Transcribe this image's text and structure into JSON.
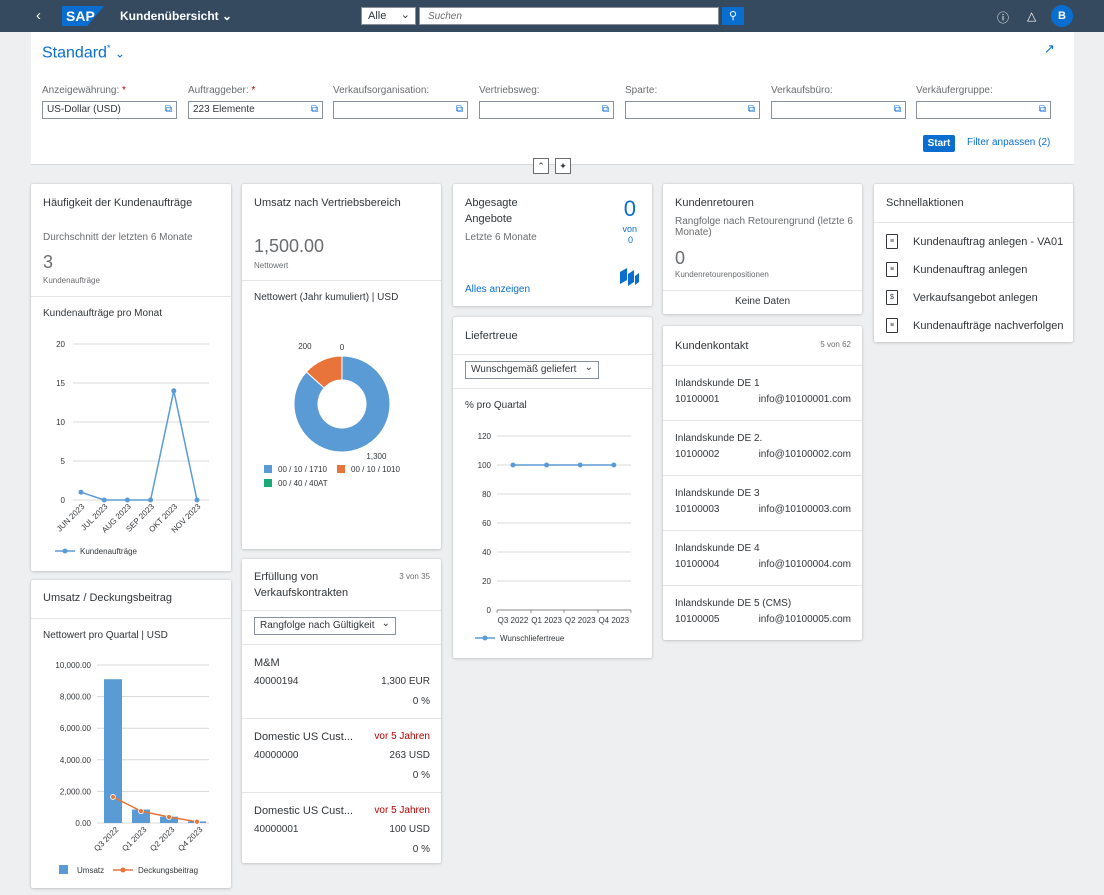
{
  "shell": {
    "app_title": "Kundenübersicht",
    "scope": "Alle",
    "search_placeholder": "Suchen",
    "avatar": "B"
  },
  "filterbar": {
    "variant": "Standard",
    "fields": [
      {
        "label": "Anzeigewährung:",
        "required": true,
        "value": "US-Dollar (USD)"
      },
      {
        "label": "Auftraggeber:",
        "required": true,
        "value": "223 Elemente"
      },
      {
        "label": "Verkaufsorganisation:",
        "required": false,
        "value": ""
      },
      {
        "label": "Vertriebsweg:",
        "required": false,
        "value": ""
      },
      {
        "label": "Sparte:",
        "required": false,
        "value": ""
      },
      {
        "label": "Verkaufsbüro:",
        "required": false,
        "value": ""
      },
      {
        "label": "Verkäufergruppe:",
        "required": false,
        "value": ""
      }
    ],
    "start": "Start",
    "adapt": "Filter anpassen (2)"
  },
  "freq": {
    "title": "Häufigkeit der Kundenaufträge",
    "subtitle": "Durchschnitt der letzten 6 Monate",
    "kpi": "3",
    "kpi_unit": "Kundenaufträge",
    "chart_title": "Kundenaufträge pro Monat"
  },
  "sales_area": {
    "title": "Umsatz nach Vertriebsbereich",
    "kpi": "1,500.00",
    "kpi_unit": "Nettowert",
    "chart_title": "Nettowert (Jahr kumuliert) | USD"
  },
  "quotes": {
    "title": "Abgesagte Angebote",
    "subtitle": "Letzte 6 Monate",
    "count": "0",
    "von": "von",
    "total": "0",
    "link": "Alles anzeigen"
  },
  "returns": {
    "title": "Kundenretouren",
    "subtitle": "Rangfolge nach Retourengrund (letzte 6 Monate)",
    "kpi": "0",
    "kpi_unit": "Kundenretourenpositionen",
    "empty": "Keine Daten"
  },
  "quick": {
    "title": "Schnellaktionen",
    "items": [
      "Kundenauftrag anlegen - VA01",
      "Kundenauftrag anlegen",
      "Verkaufsangebot anlegen",
      "Kundenaufträge nachverfolgen"
    ]
  },
  "delivery": {
    "title": "Liefertreue",
    "select": "Wunschgemäß geliefert",
    "chart_title": "% pro Quartal"
  },
  "contacts": {
    "title": "Kundenkontakt",
    "count": "5 von 62",
    "items": [
      {
        "name": "Inlandskunde DE 1",
        "id": "10100001",
        "email": "info@10100001.com"
      },
      {
        "name": "Inlandskunde DE 2.",
        "id": "10100002",
        "email": "info@10100002.com"
      },
      {
        "name": "Inlandskunde DE 3",
        "id": "10100003",
        "email": "info@10100003.com"
      },
      {
        "name": "Inlandskunde DE 4",
        "id": "10100004",
        "email": "info@10100004.com"
      },
      {
        "name": "Inlandskunde DE 5 (CMS)",
        "id": "10100005",
        "email": "info@10100005.com"
      }
    ]
  },
  "revenue": {
    "title": "Umsatz / Deckungsbeitrag",
    "chart_title": "Nettowert pro Quartal | USD"
  },
  "contracts": {
    "title": "Erfüllung von Verkaufskontrakten",
    "count": "3 von 35",
    "select": "Rangfolge nach Gültigkeit",
    "items": [
      {
        "name": "M&M",
        "id": "40000194",
        "amount": "1,300 EUR",
        "pct": "0 %",
        "status": ""
      },
      {
        "name": "Domestic US Cust...",
        "id": "40000000",
        "amount": "263 USD",
        "pct": "0 %",
        "status": "vor 5 Jahren"
      },
      {
        "name": "Domestic US Cust...",
        "id": "40000001",
        "amount": "100 USD",
        "pct": "0 %",
        "status": "vor 5 Jahren"
      }
    ]
  },
  "chart_data": [
    {
      "type": "line",
      "title": "Kundenaufträge pro Monat",
      "categories": [
        "JUN 2023",
        "JUL 2023",
        "AUG 2023",
        "SEP 2023",
        "OKT 2023",
        "NOV 2023"
      ],
      "series": [
        {
          "name": "Kundenaufträge",
          "values": [
            1,
            0,
            0,
            0,
            14,
            0
          ]
        }
      ],
      "ylim": [
        0,
        20
      ],
      "yticks": [
        "0",
        "5",
        "10",
        "15",
        "20"
      ],
      "legend": "bottom",
      "color": "#5b9bd5"
    },
    {
      "type": "pie",
      "title": "Nettowert (Jahr kumuliert) | USD",
      "donut": true,
      "slices": [
        {
          "name": "00 / 10 / 1710",
          "value": 1300,
          "label": "1,300",
          "color": "#5b9bd5"
        },
        {
          "name": "00 / 10 / 1010",
          "value": 200,
          "label": "200",
          "color": "#e8743b"
        },
        {
          "name": "00 / 40 / 40AT",
          "value": 0,
          "label": "0",
          "color": "#19a979"
        }
      ],
      "legend": "bottom"
    },
    {
      "type": "line",
      "title": "% pro Quartal",
      "categories": [
        "Q3 2022",
        "Q1 2023",
        "Q2 2023",
        "Q4 2023"
      ],
      "series": [
        {
          "name": "Wunschliefertreue",
          "values": [
            100,
            100,
            100,
            100
          ]
        }
      ],
      "ylim": [
        0,
        120
      ],
      "yticks": [
        "0",
        "20",
        "40",
        "60",
        "80",
        "100",
        "120"
      ],
      "legend": "bottom",
      "color": "#5b9bd5"
    },
    {
      "type": "bar",
      "title": "Nettowert pro Quartal | USD",
      "categories": [
        "Q3 2022",
        "Q1 2023",
        "Q2 2023",
        "Q4 2023"
      ],
      "series": [
        {
          "name": "Umsatz",
          "type": "bar",
          "values": [
            9100,
            850,
            400,
            100
          ]
        },
        {
          "name": "Deckungsbeitrag",
          "type": "line",
          "values": [
            1650,
            750,
            380,
            80
          ]
        }
      ],
      "ylim": [
        0,
        10000
      ],
      "yticks": [
        "0.00",
        "2,000.00",
        "4,000.00",
        "6,000.00",
        "8,000.00",
        "10,000.00"
      ],
      "legend": "bottom",
      "colors": [
        "#5b9bd5",
        "#e8743b"
      ]
    }
  ]
}
